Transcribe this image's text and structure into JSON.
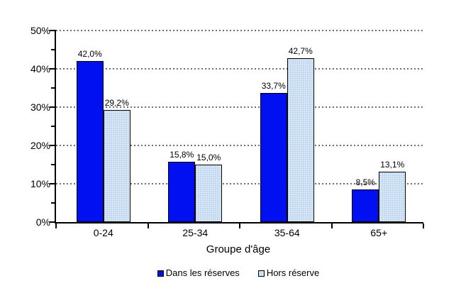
{
  "chart_data": {
    "type": "bar",
    "title": "",
    "categories": [
      "0-24",
      "25-34",
      "35-64",
      "65+"
    ],
    "series": [
      {
        "name": "Dans les réserves",
        "values": [
          42.0,
          15.8,
          33.7,
          8.5
        ],
        "labels": [
          "42,0%",
          "15,8%",
          "33,7%",
          "8,5%"
        ],
        "color": "#0010f0",
        "fill_style": "solid"
      },
      {
        "name": "Hors réserve",
        "values": [
          29.2,
          15.0,
          42.7,
          13.1
        ],
        "labels": [
          "29,2%",
          "15,0%",
          "42,7%",
          "13,1%"
        ],
        "color": "#d9e8f8",
        "pattern_color": "#b9d2ea",
        "fill_style": "dotted"
      }
    ],
    "xlabel": "Groupe d'âge",
    "ylabel": "",
    "ylim": [
      0,
      50
    ],
    "ytick_step": 10,
    "ytick_minor_step": 5,
    "ytick_labels": [
      "0%",
      "10%",
      "20%",
      "30%",
      "40%",
      "50%"
    ],
    "decimal_separator": ",",
    "grid": true,
    "gridline_style": "dotted",
    "legend_position": "bottom",
    "colors": {
      "axis": "#000000",
      "gridline": "#6e6e6e",
      "bar_border": "#000000",
      "text": "#000000",
      "background": "#ffffff"
    }
  }
}
